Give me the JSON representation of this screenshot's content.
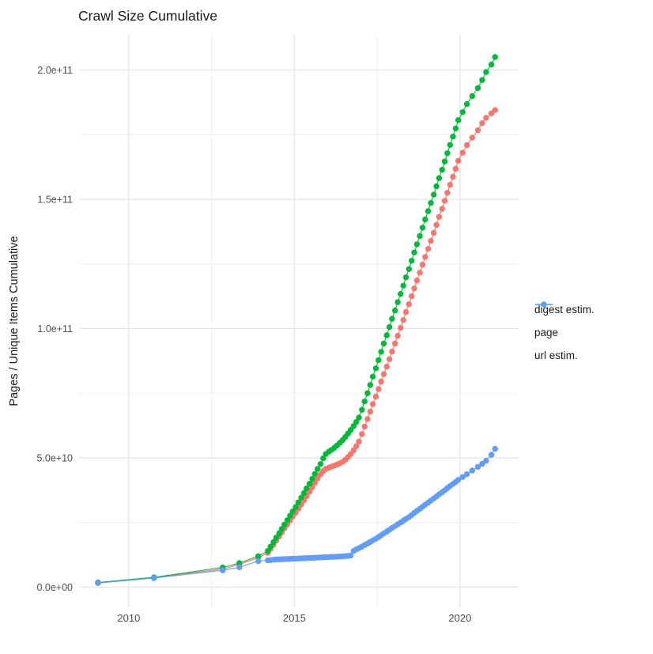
{
  "chart_data": {
    "type": "line",
    "title": "Crawl Size Cumulative",
    "xlabel": "",
    "ylabel": "Pages / Unique Items Cumulative",
    "value_unit": "pages (values below in billions, 1e9)",
    "grid": true,
    "legend_position": "right-center",
    "xlim": [
      2008.5,
      2021.77
    ],
    "ylim_e9": [
      -7.8,
      213.6
    ],
    "x_ticks": [
      {
        "value": 2010,
        "label": "2010"
      },
      {
        "value": 2015,
        "label": "2015"
      },
      {
        "value": 2020,
        "label": "2020"
      }
    ],
    "x_minor": [
      2012.5,
      2017.5
    ],
    "y_ticks": [
      {
        "value": 0,
        "label": "0.0e+00"
      },
      {
        "value": 50,
        "label": "5.0e+10"
      },
      {
        "value": 100,
        "label": "1.0e+11"
      },
      {
        "value": 150,
        "label": "1.5e+11"
      },
      {
        "value": 200,
        "label": "2.0e+11"
      }
    ],
    "y_minor": [
      25,
      75,
      125,
      175
    ],
    "colors": {
      "digest": "#F8766D",
      "page": "#00BA38",
      "url": "#619CFF"
    },
    "series": [
      {
        "name": "digest estim.",
        "color": "#F8766D",
        "points": [
          [
            2009.07,
            1.7
          ],
          [
            2010.76,
            3.7
          ],
          [
            2012.84,
            7.0
          ],
          [
            2013.34,
            8.8
          ],
          [
            2013.91,
            11.4
          ],
          [
            2014.2,
            13.2
          ],
          [
            2014.28,
            14.8
          ],
          [
            2014.37,
            16.4
          ],
          [
            2014.45,
            18.0
          ],
          [
            2014.54,
            19.6
          ],
          [
            2014.62,
            21.2
          ],
          [
            2014.7,
            22.8
          ],
          [
            2014.79,
            24.3
          ],
          [
            2014.87,
            25.8
          ],
          [
            2014.95,
            27.3
          ],
          [
            2015.04,
            28.8
          ],
          [
            2015.12,
            30.4
          ],
          [
            2015.21,
            32.0
          ],
          [
            2015.29,
            33.6
          ],
          [
            2015.37,
            35.2
          ],
          [
            2015.46,
            36.9
          ],
          [
            2015.54,
            38.6
          ],
          [
            2015.62,
            40.3
          ],
          [
            2015.7,
            42.0
          ],
          [
            2015.79,
            43.6
          ],
          [
            2015.87,
            44.9
          ],
          [
            2015.95,
            45.7
          ],
          [
            2016.04,
            46.2
          ],
          [
            2016.12,
            46.6
          ],
          [
            2016.21,
            47.0
          ],
          [
            2016.29,
            47.4
          ],
          [
            2016.37,
            47.9
          ],
          [
            2016.46,
            48.5
          ],
          [
            2016.54,
            49.3
          ],
          [
            2016.62,
            50.3
          ],
          [
            2016.7,
            51.5
          ],
          [
            2016.79,
            52.9
          ],
          [
            2016.87,
            54.5
          ],
          [
            2016.95,
            56.3
          ],
          [
            2017.04,
            59.2
          ],
          [
            2017.12,
            62.1
          ],
          [
            2017.21,
            65.0
          ],
          [
            2017.29,
            67.9
          ],
          [
            2017.37,
            70.8
          ],
          [
            2017.46,
            73.7
          ],
          [
            2017.54,
            76.6
          ],
          [
            2017.62,
            79.5
          ],
          [
            2017.7,
            82.4
          ],
          [
            2017.79,
            85.3
          ],
          [
            2017.87,
            88.2
          ],
          [
            2017.95,
            91.1
          ],
          [
            2018.04,
            94.2
          ],
          [
            2018.12,
            97.2
          ],
          [
            2018.21,
            100.3
          ],
          [
            2018.29,
            103.3
          ],
          [
            2018.37,
            106.4
          ],
          [
            2018.46,
            109.4
          ],
          [
            2018.54,
            112.5
          ],
          [
            2018.62,
            115.5
          ],
          [
            2018.7,
            118.6
          ],
          [
            2018.79,
            121.6
          ],
          [
            2018.87,
            124.7
          ],
          [
            2018.95,
            127.7
          ],
          [
            2019.04,
            130.8
          ],
          [
            2019.12,
            133.9
          ],
          [
            2019.21,
            137.0
          ],
          [
            2019.29,
            140.1
          ],
          [
            2019.37,
            143.2
          ],
          [
            2019.46,
            146.3
          ],
          [
            2019.54,
            149.4
          ],
          [
            2019.62,
            152.5
          ],
          [
            2019.7,
            155.6
          ],
          [
            2019.79,
            158.7
          ],
          [
            2019.87,
            161.8
          ],
          [
            2019.95,
            164.9
          ],
          [
            2020.08,
            168.0
          ],
          [
            2020.21,
            170.9
          ],
          [
            2020.37,
            173.8
          ],
          [
            2020.54,
            176.7
          ],
          [
            2020.67,
            179.4
          ],
          [
            2020.79,
            181.5
          ],
          [
            2020.95,
            183.2
          ],
          [
            2021.06,
            184.5
          ]
        ]
      },
      {
        "name": "page",
        "color": "#00BA38",
        "points": [
          [
            2009.07,
            1.8
          ],
          [
            2010.76,
            3.8
          ],
          [
            2012.84,
            7.6
          ],
          [
            2013.34,
            9.3
          ],
          [
            2013.91,
            12.0
          ],
          [
            2014.2,
            14.0
          ],
          [
            2014.28,
            15.7
          ],
          [
            2014.37,
            17.4
          ],
          [
            2014.45,
            19.1
          ],
          [
            2014.54,
            20.8
          ],
          [
            2014.62,
            22.5
          ],
          [
            2014.7,
            24.2
          ],
          [
            2014.79,
            25.9
          ],
          [
            2014.87,
            27.6
          ],
          [
            2014.95,
            29.3
          ],
          [
            2015.04,
            31.0
          ],
          [
            2015.12,
            32.8
          ],
          [
            2015.21,
            34.6
          ],
          [
            2015.29,
            36.4
          ],
          [
            2015.37,
            38.2
          ],
          [
            2015.46,
            40.0
          ],
          [
            2015.54,
            41.9
          ],
          [
            2015.62,
            43.8
          ],
          [
            2015.7,
            45.7
          ],
          [
            2015.79,
            47.6
          ],
          [
            2015.87,
            49.8
          ],
          [
            2015.95,
            51.5
          ],
          [
            2016.04,
            52.4
          ],
          [
            2016.12,
            53.1
          ],
          [
            2016.21,
            53.9
          ],
          [
            2016.29,
            54.8
          ],
          [
            2016.37,
            55.8
          ],
          [
            2016.46,
            56.9
          ],
          [
            2016.54,
            58.1
          ],
          [
            2016.62,
            59.4
          ],
          [
            2016.7,
            60.8
          ],
          [
            2016.79,
            62.3
          ],
          [
            2016.87,
            63.9
          ],
          [
            2016.95,
            65.6
          ],
          [
            2017.04,
            68.6
          ],
          [
            2017.12,
            71.8
          ],
          [
            2017.21,
            75.0
          ],
          [
            2017.29,
            78.2
          ],
          [
            2017.37,
            81.4
          ],
          [
            2017.46,
            84.6
          ],
          [
            2017.54,
            87.8
          ],
          [
            2017.62,
            91.0
          ],
          [
            2017.7,
            94.2
          ],
          [
            2017.79,
            97.4
          ],
          [
            2017.87,
            100.6
          ],
          [
            2017.95,
            103.8
          ],
          [
            2018.04,
            107.0
          ],
          [
            2018.12,
            110.2
          ],
          [
            2018.21,
            113.4
          ],
          [
            2018.29,
            116.6
          ],
          [
            2018.37,
            119.8
          ],
          [
            2018.46,
            123.0
          ],
          [
            2018.54,
            126.2
          ],
          [
            2018.62,
            129.4
          ],
          [
            2018.7,
            132.6
          ],
          [
            2018.79,
            135.8
          ],
          [
            2018.87,
            139.0
          ],
          [
            2018.95,
            142.2
          ],
          [
            2019.04,
            145.4
          ],
          [
            2019.12,
            148.6
          ],
          [
            2019.21,
            151.8
          ],
          [
            2019.29,
            155.0
          ],
          [
            2019.37,
            158.2
          ],
          [
            2019.46,
            161.4
          ],
          [
            2019.54,
            164.6
          ],
          [
            2019.62,
            167.8
          ],
          [
            2019.7,
            171.0
          ],
          [
            2019.79,
            174.2
          ],
          [
            2019.87,
            177.4
          ],
          [
            2019.95,
            180.6
          ],
          [
            2020.08,
            183.7
          ],
          [
            2020.21,
            186.8
          ],
          [
            2020.37,
            189.9
          ],
          [
            2020.54,
            193.0
          ],
          [
            2020.67,
            196.1
          ],
          [
            2020.79,
            199.2
          ],
          [
            2020.95,
            202.1
          ],
          [
            2021.06,
            205.0
          ]
        ]
      },
      {
        "name": "url estim.",
        "color": "#619CFF",
        "points": [
          [
            2009.07,
            1.6
          ],
          [
            2010.76,
            3.5
          ],
          [
            2012.84,
            6.5
          ],
          [
            2013.34,
            7.7
          ],
          [
            2013.91,
            10.1
          ],
          [
            2014.2,
            10.4
          ],
          [
            2014.28,
            10.5
          ],
          [
            2014.37,
            10.6
          ],
          [
            2014.45,
            10.7
          ],
          [
            2014.54,
            10.75
          ],
          [
            2014.62,
            10.8
          ],
          [
            2014.7,
            10.85
          ],
          [
            2014.79,
            10.9
          ],
          [
            2014.87,
            10.95
          ],
          [
            2014.95,
            11.0
          ],
          [
            2015.04,
            11.05
          ],
          [
            2015.12,
            11.1
          ],
          [
            2015.21,
            11.15
          ],
          [
            2015.29,
            11.2
          ],
          [
            2015.37,
            11.25
          ],
          [
            2015.46,
            11.3
          ],
          [
            2015.54,
            11.35
          ],
          [
            2015.62,
            11.4
          ],
          [
            2015.7,
            11.45
          ],
          [
            2015.79,
            11.5
          ],
          [
            2015.87,
            11.55
          ],
          [
            2015.95,
            11.6
          ],
          [
            2016.04,
            11.65
          ],
          [
            2016.12,
            11.7
          ],
          [
            2016.21,
            11.75
          ],
          [
            2016.29,
            11.8
          ],
          [
            2016.37,
            11.85
          ],
          [
            2016.46,
            11.9
          ],
          [
            2016.54,
            12.0
          ],
          [
            2016.62,
            12.1
          ],
          [
            2016.7,
            12.2
          ],
          [
            2016.79,
            14.0
          ],
          [
            2016.87,
            14.6
          ],
          [
            2016.95,
            15.1
          ],
          [
            2017.04,
            15.7
          ],
          [
            2017.12,
            16.3
          ],
          [
            2017.21,
            16.9
          ],
          [
            2017.29,
            17.5
          ],
          [
            2017.37,
            18.1
          ],
          [
            2017.46,
            18.7
          ],
          [
            2017.54,
            19.4
          ],
          [
            2017.62,
            20.1
          ],
          [
            2017.7,
            20.8
          ],
          [
            2017.79,
            21.5
          ],
          [
            2017.87,
            22.2
          ],
          [
            2017.95,
            22.9
          ],
          [
            2018.04,
            23.6
          ],
          [
            2018.12,
            24.3
          ],
          [
            2018.21,
            25.0
          ],
          [
            2018.29,
            25.7
          ],
          [
            2018.37,
            26.4
          ],
          [
            2018.46,
            27.1
          ],
          [
            2018.54,
            27.9
          ],
          [
            2018.62,
            28.7
          ],
          [
            2018.7,
            29.5
          ],
          [
            2018.79,
            30.3
          ],
          [
            2018.87,
            31.1
          ],
          [
            2018.95,
            31.9
          ],
          [
            2019.04,
            32.7
          ],
          [
            2019.12,
            33.5
          ],
          [
            2019.21,
            34.3
          ],
          [
            2019.29,
            35.1
          ],
          [
            2019.37,
            35.9
          ],
          [
            2019.46,
            36.7
          ],
          [
            2019.54,
            37.5
          ],
          [
            2019.62,
            38.3
          ],
          [
            2019.7,
            39.1
          ],
          [
            2019.79,
            39.9
          ],
          [
            2019.87,
            40.7
          ],
          [
            2019.95,
            41.5
          ],
          [
            2020.08,
            42.6
          ],
          [
            2020.21,
            43.7
          ],
          [
            2020.37,
            45.1
          ],
          [
            2020.54,
            46.5
          ],
          [
            2020.67,
            47.7
          ],
          [
            2020.79,
            48.9
          ],
          [
            2020.95,
            51.2
          ],
          [
            2021.06,
            53.5
          ]
        ]
      }
    ]
  }
}
